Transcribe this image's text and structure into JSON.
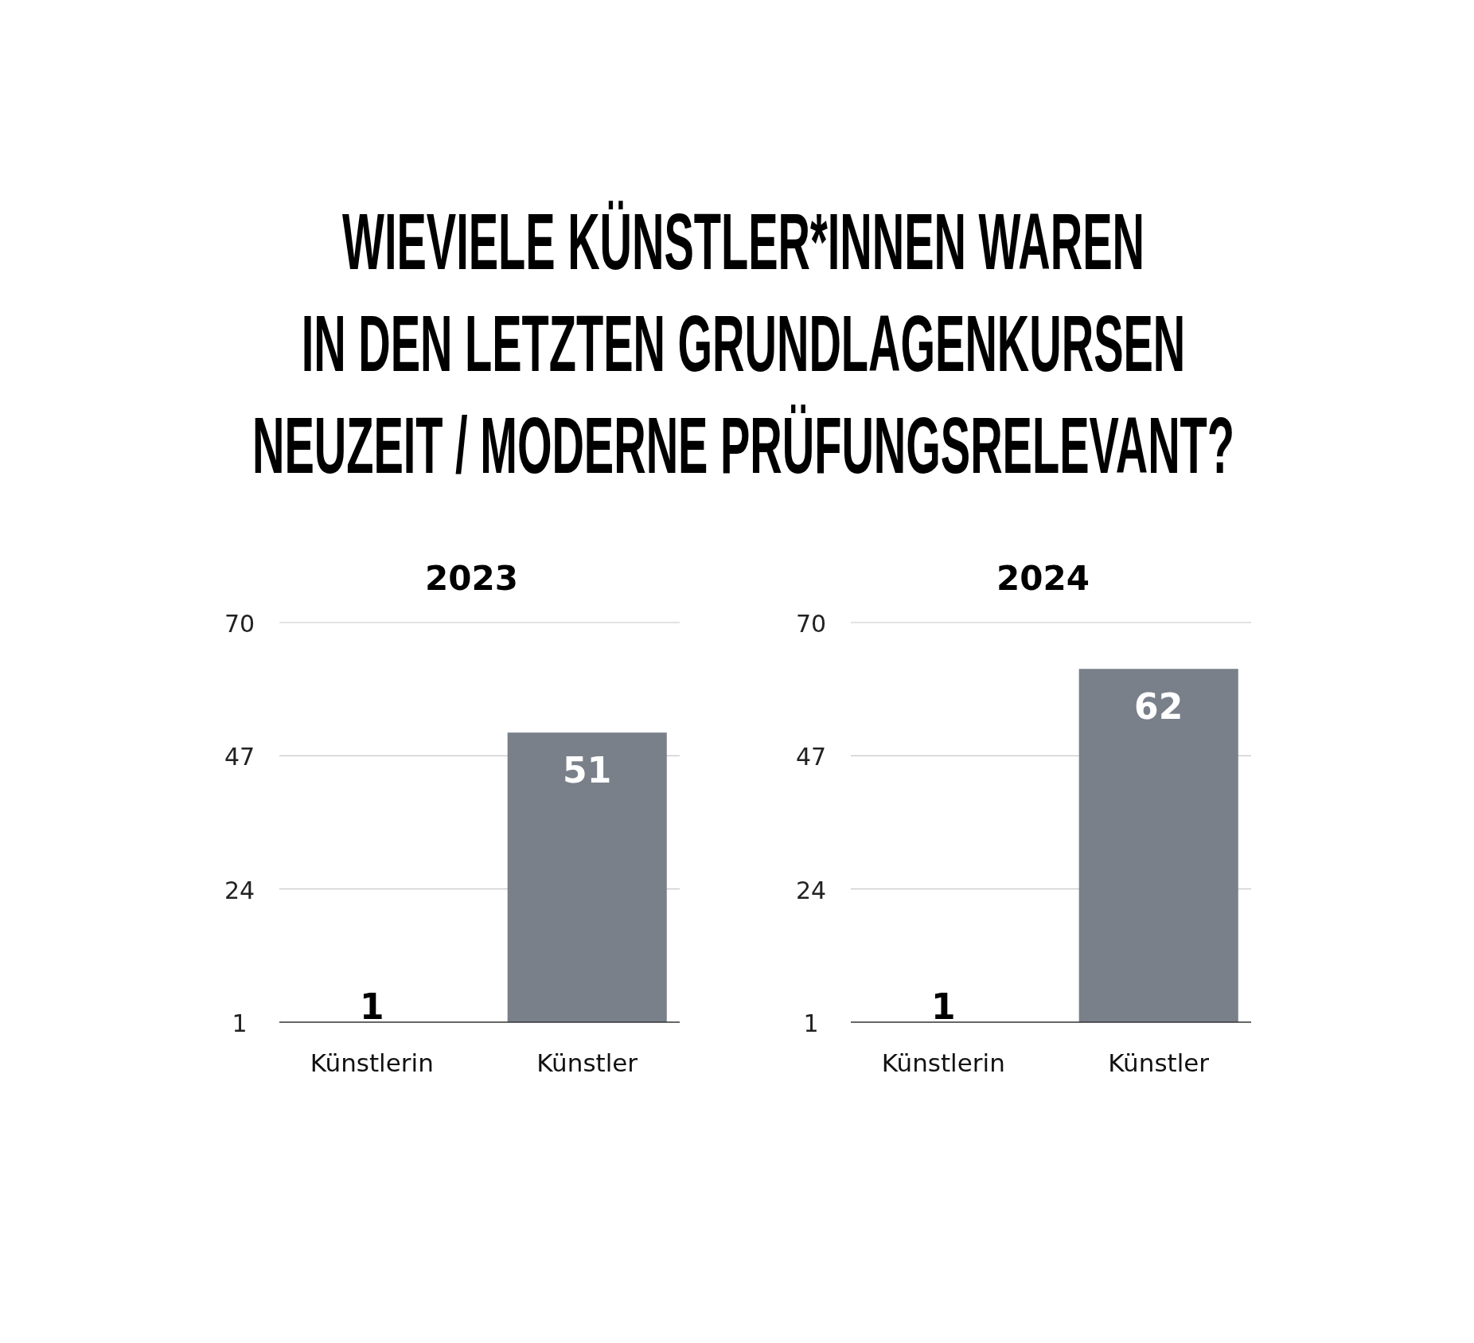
{
  "chart_data": [
    {
      "type": "other",
      "title": "WIEVIELE KÜNSTLER*INNEN WAREN\nIN DEN LETZTEN GRUNDLAGENKURSEN\nNEUZEIT / MODERNE PRÜFUNGSRELEVANT?"
    },
    {
      "type": "bar",
      "title": "2023",
      "categories": [
        "Künstlerin",
        "Künstler"
      ],
      "values": [
        1,
        51
      ],
      "color": "#7a808a",
      "ylim": [
        1,
        70
      ],
      "yticks": [
        1,
        24,
        47,
        70
      ],
      "grid": "y",
      "data_labels": true
    },
    {
      "type": "bar",
      "title": "2024",
      "categories": [
        "Künstlerin",
        "Künstler"
      ],
      "values": [
        1,
        62
      ],
      "color": "#7a808a",
      "ylim": [
        1,
        70
      ],
      "yticks": [
        1,
        24,
        47,
        70
      ],
      "grid": "y",
      "data_labels": true
    }
  ]
}
